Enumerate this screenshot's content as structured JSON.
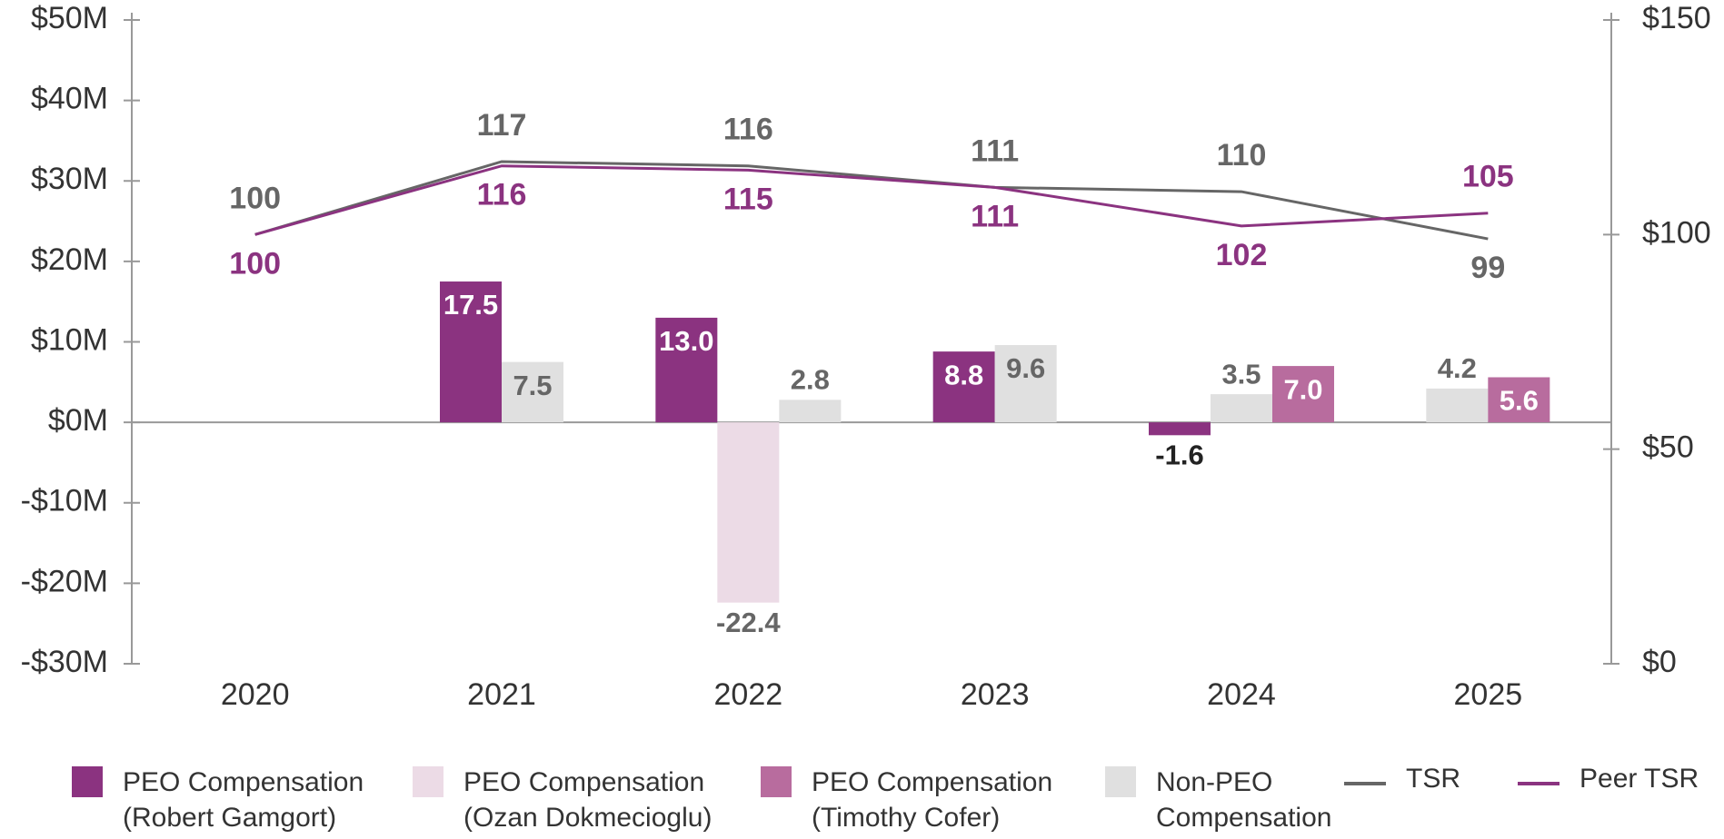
{
  "chart_data": {
    "type": "bar-line",
    "categories": [
      "2020",
      "2021",
      "2022",
      "2023",
      "2024",
      "2025"
    ],
    "series": [
      {
        "name": "PEO Compensation (Robert Gamgort)",
        "type": "bar",
        "color": "#8b3380",
        "values": [
          null,
          17.5,
          13.0,
          8.8,
          -1.6,
          null
        ],
        "value_labels": [
          null,
          "17.5",
          "13.0",
          "8.8",
          "-1.6",
          null
        ]
      },
      {
        "name": "PEO Compensation (Ozan Dokmecioglu)",
        "type": "bar",
        "color": "#ecdbe6",
        "values": [
          null,
          null,
          -22.4,
          null,
          null,
          null
        ],
        "value_labels": [
          null,
          null,
          "-22.4",
          null,
          null,
          null
        ]
      },
      {
        "name": "PEO Compensation (Timothy Cofer)",
        "type": "bar",
        "color": "#b86c9e",
        "values": [
          null,
          null,
          null,
          null,
          7.0,
          5.6
        ],
        "value_labels": [
          null,
          null,
          null,
          null,
          "7.0",
          "5.6"
        ]
      },
      {
        "name": "Non-PEO Compensation",
        "type": "bar",
        "color": "#e0e0e0",
        "values": [
          null,
          7.5,
          2.8,
          9.6,
          3.5,
          4.2
        ],
        "value_labels": [
          null,
          "7.5",
          "2.8",
          "9.6",
          "3.5",
          "4.2"
        ]
      },
      {
        "name": "TSR",
        "type": "line",
        "axis": "y2",
        "color": "#666666",
        "values": [
          100,
          117,
          116,
          111,
          110,
          99
        ]
      },
      {
        "name": "Peer TSR",
        "type": "line",
        "axis": "y2",
        "color": "#8b3380",
        "values": [
          100,
          116,
          115,
          111,
          102,
          105
        ]
      }
    ],
    "ylim": [
      -30,
      50
    ],
    "yticks": [
      {
        "value": -30,
        "label": "-$30M"
      },
      {
        "value": -20,
        "label": "-$20M"
      },
      {
        "value": -10,
        "label": "-$10M"
      },
      {
        "value": 0,
        "label": "$0M"
      },
      {
        "value": 10,
        "label": "$10M"
      },
      {
        "value": 20,
        "label": "$20M"
      },
      {
        "value": 30,
        "label": "$30M"
      },
      {
        "value": 40,
        "label": "$40M"
      },
      {
        "value": 50,
        "label": "$50M"
      }
    ],
    "y2lim": [
      0,
      150
    ],
    "y2ticks": [
      {
        "value": 0,
        "label": "$0"
      },
      {
        "value": 50,
        "label": "$50"
      },
      {
        "value": 100,
        "label": "$100"
      },
      {
        "value": 150,
        "label": "$150"
      }
    ],
    "grid": false,
    "legend": "bottom"
  }
}
